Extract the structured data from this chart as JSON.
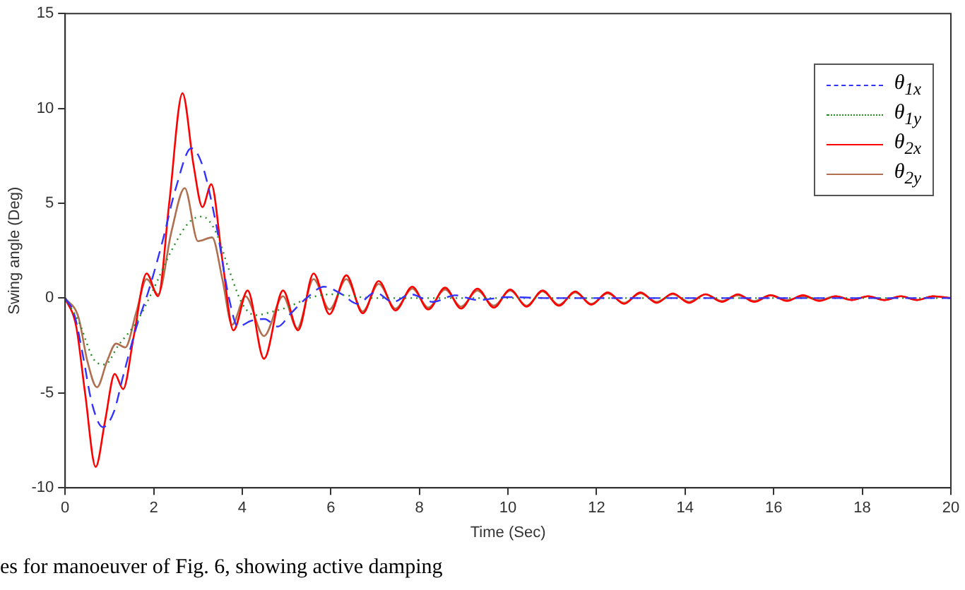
{
  "chart_data": {
    "type": "line",
    "xlabel": "Time (Sec)",
    "ylabel": "Swing angle (Deg)",
    "xlim": [
      0,
      20
    ],
    "ylim": [
      -10,
      15
    ],
    "xticks": [
      0,
      2,
      4,
      6,
      8,
      10,
      12,
      14,
      16,
      18,
      20
    ],
    "yticks": [
      -10,
      -5,
      0,
      5,
      10,
      15
    ],
    "grid": false,
    "legend": "top right",
    "marker": "none",
    "annotations": [
      "es for manoeuver of Fig. 6, showing active damping"
    ],
    "series": [
      {
        "name": "θ$_{1x}$",
        "color": "#3333ff",
        "line_style": "dashed",
        "x": [
          0,
          0.2,
          0.4,
          0.6,
          0.85,
          1.1,
          1.3,
          1.6,
          1.9,
          2.2,
          2.5,
          2.85,
          3.1,
          3.4,
          3.7,
          3.9,
          4.2,
          4.5,
          4.8,
          5.1,
          5.45,
          5.85,
          6.25,
          6.6,
          7.0,
          7.4,
          7.8,
          8.3,
          8.8,
          9.3,
          10,
          11,
          12,
          14,
          16,
          18,
          20
        ],
        "values": [
          0,
          -0.8,
          -3,
          -5.5,
          -6.8,
          -6,
          -4.2,
          -1.6,
          0.5,
          3,
          5.8,
          7.9,
          7,
          4,
          0,
          -1.5,
          -1.2,
          -1.1,
          -1.5,
          -0.8,
          0,
          0.6,
          0.2,
          -0.3,
          0.3,
          -0.2,
          0.2,
          -0.2,
          0.15,
          -0.1,
          0.05,
          0,
          0,
          0,
          0,
          0,
          0
        ]
      },
      {
        "name": "θ$_{1y}$",
        "color": "#228b22",
        "line_style": "dotted",
        "x": [
          0,
          0.3,
          0.67,
          0.9,
          1.2,
          1.63,
          2.0,
          2.4,
          2.8,
          3.1,
          3.4,
          3.7,
          4.0,
          4.3,
          4.7,
          5.0,
          5.5,
          6,
          7,
          8,
          10,
          12,
          14,
          16,
          18,
          20
        ],
        "values": [
          0,
          -1.2,
          -3.3,
          -3.5,
          -2.5,
          -1.2,
          0.5,
          2.5,
          4,
          4.3,
          3.5,
          1.5,
          -0.3,
          -0.9,
          -0.7,
          -0.5,
          0,
          0.2,
          0,
          0,
          0,
          0,
          0,
          0,
          0,
          0
        ]
      },
      {
        "name": "θ$_{2x}$",
        "color": "#ff0000",
        "line_style": "solid",
        "x": [
          0,
          0.25,
          0.45,
          0.69,
          0.9,
          1.12,
          1.31,
          1.55,
          1.84,
          2.1,
          2.35,
          2.65,
          2.9,
          3.1,
          3.3,
          3.55,
          3.8,
          4.12,
          4.49,
          4.92,
          5.26,
          5.61,
          5.97,
          6.35,
          6.72,
          7.08,
          7.46,
          7.84,
          8.2,
          8.58,
          8.94,
          9.31,
          9.68,
          10.05,
          10.42,
          10.78,
          11.15,
          11.52,
          11.88,
          12.25,
          12.62,
          12.99,
          13.36,
          13.72,
          14.09,
          14.46,
          14.83,
          15.19,
          15.56,
          15.93,
          16.3,
          16.66,
          17.03,
          17.4,
          17.77,
          18.13,
          18.5,
          18.87,
          19.24,
          19.6,
          20
        ],
        "values": [
          0,
          -1.5,
          -5,
          -8.9,
          -6.5,
          -4.0,
          -4.8,
          -2,
          1.3,
          0.1,
          5,
          10.8,
          7,
          4.8,
          6,
          2,
          -1.7,
          0.4,
          -3.2,
          0.4,
          -1.7,
          1.3,
          -0.85,
          1.2,
          -0.8,
          0.9,
          -0.65,
          0.6,
          -0.6,
          0.55,
          -0.55,
          0.5,
          -0.5,
          0.45,
          -0.45,
          0.4,
          -0.4,
          0.35,
          -0.35,
          0.3,
          -0.3,
          0.3,
          -0.25,
          0.25,
          -0.25,
          0.2,
          -0.2,
          0.2,
          -0.2,
          0.15,
          -0.15,
          0.15,
          -0.15,
          0.1,
          -0.1,
          0.1,
          -0.1,
          0.1,
          -0.1,
          0.1,
          0
        ]
      },
      {
        "name": "θ$_{2y}$",
        "color": "#b07050",
        "line_style": "solid",
        "x": [
          0,
          0.3,
          0.5,
          0.72,
          0.95,
          1.15,
          1.36,
          1.6,
          1.84,
          2.1,
          2.4,
          2.7,
          3.0,
          3.32,
          3.55,
          3.77,
          4.07,
          4.49,
          4.92,
          5.24,
          5.61,
          5.97,
          6.35,
          6.72,
          7.08,
          7.46,
          7.84,
          8.2,
          8.58,
          8.94,
          9.31,
          9.68,
          10.05,
          10.42,
          10.78,
          11.15,
          11.52,
          11.88,
          12.25,
          12.62,
          12.99,
          13.36,
          13.72,
          14.09,
          14.46,
          14.83,
          15.19,
          15.56,
          15.93,
          16.3,
          16.66,
          17.03,
          17.4,
          17.77,
          18.13,
          18.5,
          18.87,
          19.24,
          19.6,
          20
        ],
        "values": [
          0,
          -1,
          -3.3,
          -4.7,
          -3.3,
          -2.4,
          -2.6,
          -0.8,
          1.0,
          0.2,
          3.5,
          5.8,
          3.0,
          3.2,
          1,
          -1.4,
          0.1,
          -2.0,
          0.1,
          -1.6,
          1.0,
          -0.6,
          1.0,
          -0.7,
          0.75,
          -0.55,
          0.5,
          -0.5,
          0.45,
          -0.45,
          0.4,
          -0.4,
          0.4,
          -0.4,
          0.35,
          -0.35,
          0.3,
          -0.3,
          0.25,
          -0.25,
          0.25,
          -0.2,
          0.2,
          -0.2,
          0.2,
          -0.15,
          0.15,
          -0.15,
          0.15,
          -0.1,
          0.1,
          -0.1,
          0.1,
          -0.1,
          0.1,
          -0.1,
          0.1,
          -0.1,
          0.1,
          0
        ]
      }
    ]
  }
}
